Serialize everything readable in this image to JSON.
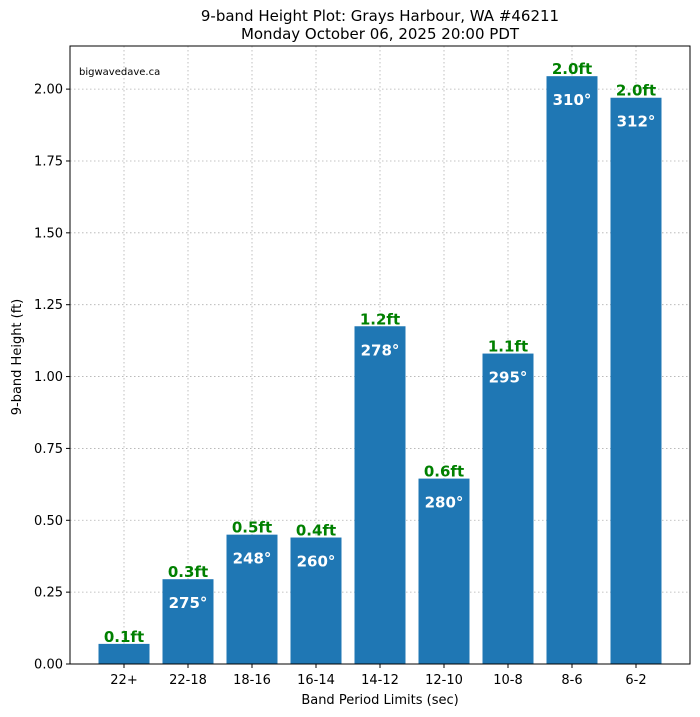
{
  "chart_data": {
    "type": "bar",
    "title": "9-band Height Plot: Grays Harbour, WA #46211",
    "subtitle": "Monday October 06, 2025 20:00 PDT",
    "xlabel": "Band Period Limits (sec)",
    "ylabel": "9-band Height (ft)",
    "ylim": [
      0,
      2.15
    ],
    "yticks": [
      "0.00",
      "0.25",
      "0.50",
      "0.75",
      "1.00",
      "1.25",
      "1.50",
      "1.75",
      "2.00"
    ],
    "ytick_values": [
      0,
      0.25,
      0.5,
      0.75,
      1.0,
      1.25,
      1.5,
      1.75,
      2.0
    ],
    "grid": true,
    "watermark": "bigwavedave.ca",
    "categories": [
      "22+",
      "22-18",
      "18-16",
      "16-14",
      "14-12",
      "12-10",
      "10-8",
      "8-6",
      "6-2"
    ],
    "values": [
      0.07,
      0.295,
      0.45,
      0.44,
      1.175,
      0.645,
      1.08,
      2.045,
      1.97
    ],
    "height_labels": [
      "0.1ft",
      "0.3ft",
      "0.5ft",
      "0.4ft",
      "1.2ft",
      "0.6ft",
      "1.1ft",
      "2.0ft",
      "2.0ft"
    ],
    "direction_labels": [
      "",
      "275°",
      "248°",
      "260°",
      "278°",
      "280°",
      "295°",
      "310°",
      "312°"
    ],
    "bar_color": "#1f77b4",
    "height_label_color": "#008000",
    "direction_label_color": "#ffffff"
  }
}
